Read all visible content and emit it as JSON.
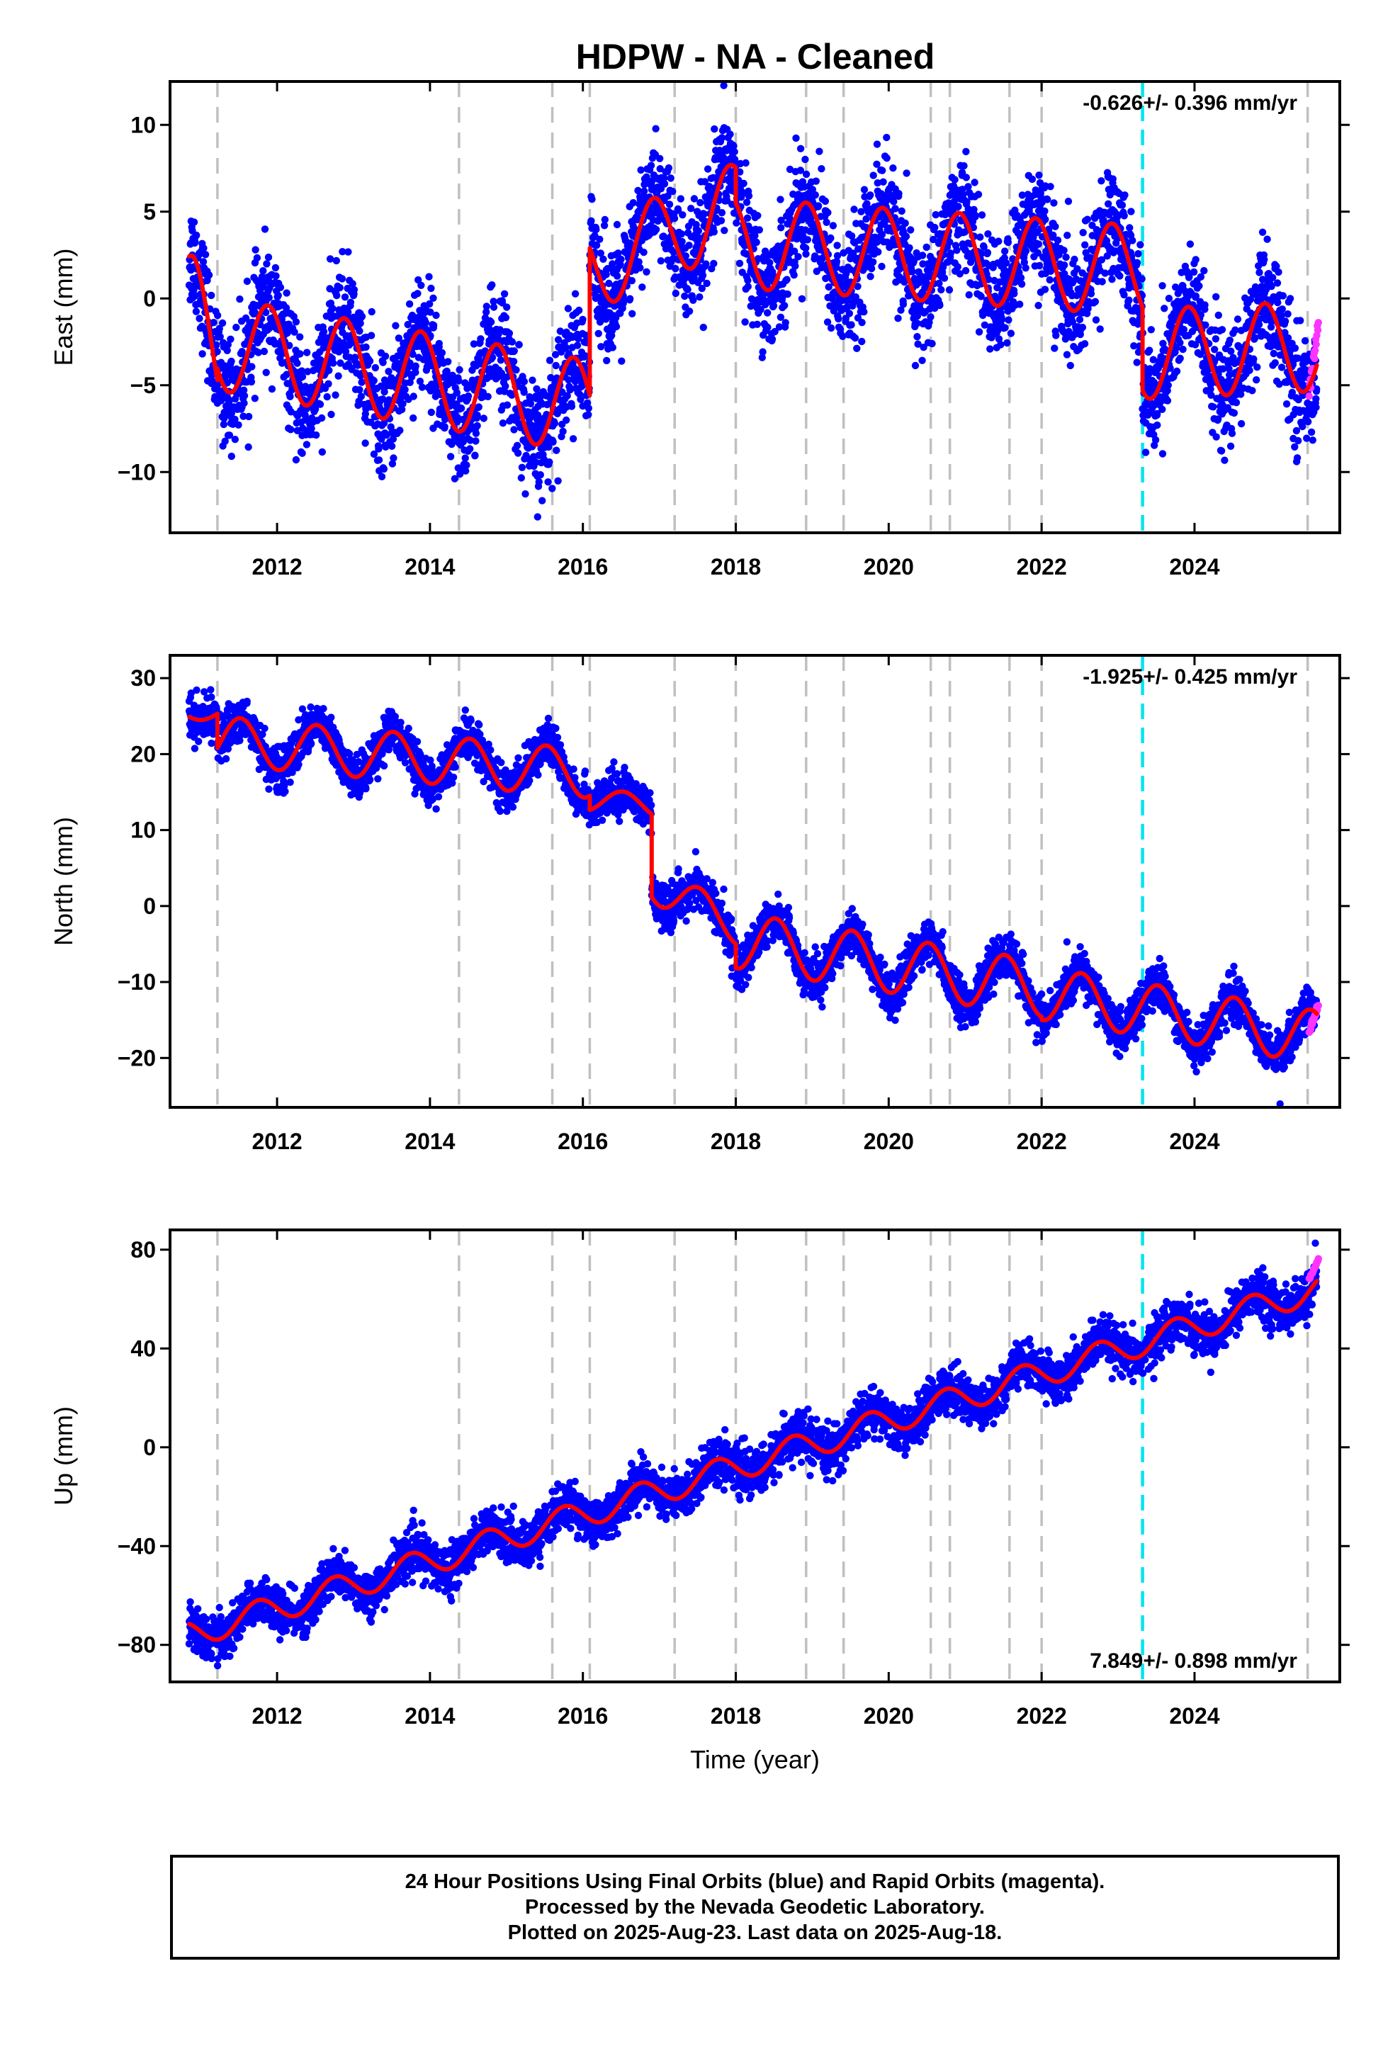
{
  "title": "HDPW  - NA - Cleaned",
  "footer": {
    "line1": "24 Hour Positions Using Final Orbits (blue) and Rapid Orbits (magenta).",
    "line2": "Processed by the Nevada Geodetic Laboratory.",
    "line3": "Plotted on 2025-Aug-23. Last data on 2025-Aug-18."
  },
  "colors": {
    "final_orbits": "#0000ff",
    "rapid_orbits": "#ff33ff",
    "fit": "#ff0000",
    "events": "#c0c0c0",
    "highlight_event": "#00e5ee"
  },
  "chart_data": [
    {
      "type": "scatter",
      "panel": "east",
      "ylabel": "East (mm)",
      "xlabel": "",
      "xlim": [
        2010.6,
        2025.9
      ],
      "ylim": [
        -13.5,
        12.5
      ],
      "xticks": [
        2012,
        2014,
        2016,
        2018,
        2020,
        2022,
        2024
      ],
      "yticks": [
        10,
        5,
        0,
        -5,
        -10
      ],
      "ytick_labels": [
        "10",
        "5",
        "0",
        "−5",
        "−10"
      ],
      "rate": "-0.626+/- 0.396 mm/yr",
      "rate_position": "top-right",
      "event_years": [
        2011.22,
        2014.38,
        2015.6,
        2016.09,
        2017.2,
        2018.0,
        2018.92,
        2019.41,
        2020.55,
        2020.8,
        2021.58,
        2022.0,
        2025.48
      ],
      "highlight_event_year": 2023.32,
      "series": [
        {
          "name": "Final Orbits",
          "color": "#0000ff",
          "fit_segments": [
            {
              "start": 2010.85,
              "end": 2011.22,
              "offset": -2.0,
              "trend": -0.8,
              "amp": 4.5,
              "phase": 2011.88
            },
            {
              "start": 2011.22,
              "end": 2016.09,
              "offset": -2.6,
              "trend": -0.75,
              "amp": 2.7,
              "phase": 2011.88
            },
            {
              "start": 2016.09,
              "end": 2018.0,
              "offset": 1.7,
              "trend": 1.9,
              "amp": 2.5,
              "phase": 2016.92
            },
            {
              "start": 2018.0,
              "end": 2023.32,
              "offset": 3.2,
              "trend": -0.3,
              "amp": 2.6,
              "phase": 2019.92
            },
            {
              "start": 2023.32,
              "end": 2025.6,
              "offset": -3.2,
              "trend": 0.2,
              "amp": 2.6,
              "phase": 2023.92
            }
          ],
          "noise_sd": 1.6
        },
        {
          "name": "Rapid Orbits",
          "color": "#ff33ff",
          "x_range": [
            2025.5,
            2025.62
          ],
          "y_range": [
            -5.5,
            -1.5
          ]
        }
      ]
    },
    {
      "type": "scatter",
      "panel": "north",
      "ylabel": "North (mm)",
      "xlabel": "",
      "xlim": [
        2010.6,
        2025.9
      ],
      "ylim": [
        -26.5,
        33
      ],
      "xticks": [
        2012,
        2014,
        2016,
        2018,
        2020,
        2022,
        2024
      ],
      "yticks": [
        30,
        20,
        10,
        0,
        -10,
        -20
      ],
      "ytick_labels": [
        "30",
        "20",
        "10",
        "0",
        "−10",
        "−20"
      ],
      "rate": "-1.925+/- 0.425 mm/yr",
      "rate_position": "top-right",
      "event_years": [
        2011.22,
        2014.38,
        2015.6,
        2016.09,
        2017.2,
        2018.0,
        2018.92,
        2019.41,
        2020.55,
        2020.8,
        2021.58,
        2022.0,
        2025.48
      ],
      "highlight_event_year": 2023.32,
      "series": [
        {
          "name": "Final Orbits",
          "color": "#0000ff",
          "fit_segments": [
            {
              "start": 2010.85,
              "end": 2011.22,
              "offset": 25.5,
              "trend": 0.0,
              "amp": 1.0,
              "phase": 2011.5
            },
            {
              "start": 2011.22,
              "end": 2016.09,
              "offset": 21.8,
              "trend": -0.9,
              "amp": 3.2,
              "phase": 2011.52
            },
            {
              "start": 2016.09,
              "end": 2016.9,
              "offset": 14.0,
              "trend": -1.0,
              "amp": 1.5,
              "phase": 2016.52
            },
            {
              "start": 2016.9,
              "end": 2018.0,
              "offset": 3.0,
              "trend": -5.0,
              "amp": 2.5,
              "phase": 2017.52
            },
            {
              "start": 2018.0,
              "end": 2022.0,
              "offset": -4.5,
              "trend": -1.6,
              "amp": 3.7,
              "phase": 2018.52
            },
            {
              "start": 2022.0,
              "end": 2025.6,
              "offset": -11.5,
              "trend": -1.6,
              "amp": 3.5,
              "phase": 2022.52
            }
          ],
          "noise_sd": 1.4
        },
        {
          "name": "Rapid Orbits",
          "color": "#ff33ff",
          "x_range": [
            2025.5,
            2025.62
          ],
          "y_range": [
            -16.5,
            -13
          ]
        }
      ]
    },
    {
      "type": "scatter",
      "panel": "up",
      "ylabel": "Up (mm)",
      "xlabel": "Time (year)",
      "xlim": [
        2010.6,
        2025.9
      ],
      "ylim": [
        -95,
        88
      ],
      "xticks": [
        2012,
        2014,
        2016,
        2018,
        2020,
        2022,
        2024
      ],
      "yticks": [
        80,
        40,
        0,
        -40,
        -80
      ],
      "ytick_labels": [
        "80",
        "40",
        "0",
        "−40",
        "−80"
      ],
      "rate": "7.849+/- 0.898 mm/yr",
      "rate_position": "bottom-right",
      "event_years": [
        2011.22,
        2014.38,
        2015.6,
        2016.09,
        2017.2,
        2018.0,
        2018.92,
        2019.41,
        2020.55,
        2020.8,
        2021.58,
        2022.0,
        2025.48
      ],
      "highlight_event_year": 2023.32,
      "series": [
        {
          "name": "Final Orbits",
          "color": "#0000ff",
          "fit_segments": [
            {
              "start": 2010.85,
              "end": 2025.6,
              "base_year": 2010.85,
              "offset": -76,
              "trend": 9.5,
              "amp": 5.5,
              "phase": 2011.75
            }
          ],
          "noise_sd": 4.5
        },
        {
          "name": "Rapid Orbits",
          "color": "#ff33ff",
          "x_range": [
            2025.5,
            2025.62
          ],
          "y_range": [
            68,
            76
          ]
        }
      ]
    }
  ]
}
